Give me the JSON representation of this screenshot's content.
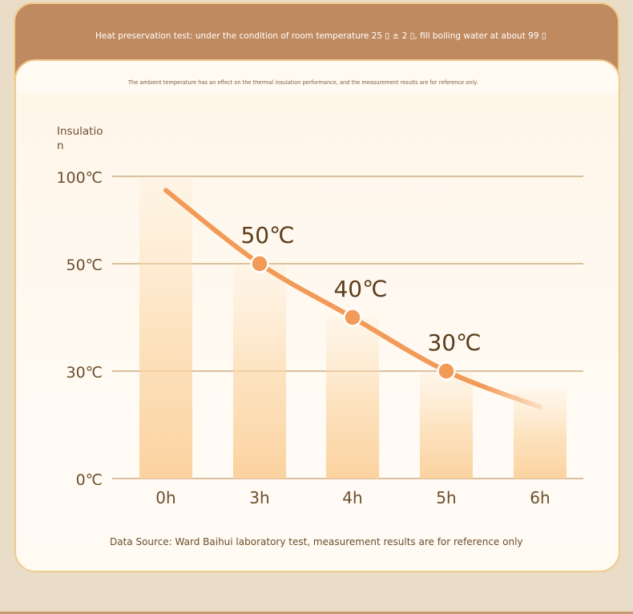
{
  "header": {
    "title": "Heat preservation test: under the condition of room temperature 25 ▯ ± 2 ▯, fill boiling water at about 99 ▯"
  },
  "note": "The ambient temperature has an effect on the thermal insulation performance, and the measurement results are for reference only.",
  "source": "Data Source: Ward Baihui laboratory test, measurement results are for reference only",
  "colors": {
    "accent": "#f29a57",
    "header": "#c08a60",
    "bar": "#fcd4a0",
    "text": "#6b4e2d"
  },
  "chart_data": {
    "type": "bar",
    "ylabel": "Insulation",
    "categories": [
      "0h",
      "3h",
      "4h",
      "5h",
      "6h"
    ],
    "values": [
      100,
      50,
      40,
      30,
      25
    ],
    "yticks": [
      {
        "value": 0,
        "label": "0℃"
      },
      {
        "value": 30,
        "label": "30℃"
      },
      {
        "value": 50,
        "label": "50℃"
      },
      {
        "value": 100,
        "label": "100℃"
      }
    ],
    "line": {
      "values": [
        92,
        50,
        40,
        30,
        20
      ],
      "markers": [
        {
          "index": 1,
          "label": "50℃"
        },
        {
          "index": 2,
          "label": "40℃"
        },
        {
          "index": 3,
          "label": "30℃"
        }
      ]
    },
    "grid": true,
    "legend": "none"
  }
}
